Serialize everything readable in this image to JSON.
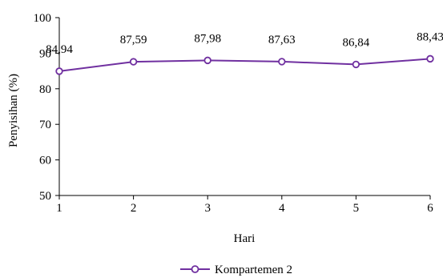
{
  "chart_data": {
    "type": "line",
    "title": "",
    "xlabel": "Hari",
    "ylabel": "Penyisihan (%)",
    "x": [
      1,
      2,
      3,
      4,
      5,
      6
    ],
    "xlim": [
      1,
      6
    ],
    "ylim": [
      50,
      100
    ],
    "y_ticks": [
      50,
      60,
      70,
      80,
      90,
      100
    ],
    "grid": false,
    "legend_position": "bottom",
    "series": [
      {
        "name": "Kompartemen 2",
        "values": [
          84.94,
          87.59,
          87.98,
          87.63,
          86.84,
          88.43
        ],
        "labels": [
          "84,94",
          "87,59",
          "87,98",
          "87,63",
          "86,84",
          "88,43"
        ],
        "color": "#7030A0",
        "marker": "open-circle"
      }
    ]
  }
}
